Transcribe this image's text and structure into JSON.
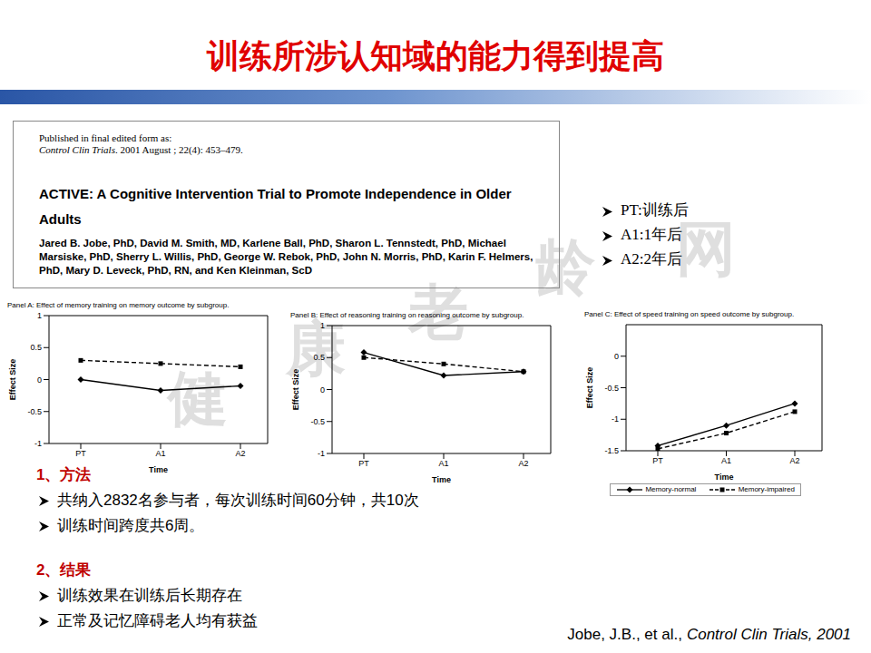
{
  "title": "训练所涉认知域的能力得到提高",
  "paper": {
    "published": "Published in final edited form as:",
    "journal": "Control Clin Trials",
    "issue": ". 2001 August ; 22(4): 453–479.",
    "title": "ACTIVE: A Cognitive Intervention Trial to Promote Independence in Older Adults",
    "authors": "Jared B. Jobe, PhD, David M. Smith, MD, Karlene Ball, PhD, Sharon L. Tennstedt, PhD, Michael Marsiske, PhD, Sherry L. Willis, PhD, George W. Rebok, PhD, John N. Morris, PhD, Karin F. Helmers, PhD, Mary D. Leveck, PhD, RN, and Ken Kleinman, ScD"
  },
  "time_points": [
    "PT:训练后",
    "A1:1年后",
    "A2:2年后"
  ],
  "chart_data": [
    {
      "type": "line",
      "title": "Panel A: Effect of memory training on memory outcome by subgroup.",
      "xlabel": "Time",
      "ylabel": "Effect Size",
      "categories": [
        "PT",
        "A1",
        "A2"
      ],
      "ylim": [
        -1,
        1
      ],
      "yticks": [
        -1,
        -0.5,
        0,
        0.5,
        1
      ],
      "series": [
        {
          "values": [
            0.3,
            0.25,
            0.2
          ],
          "color": "#000000",
          "line_style": "dashed",
          "marker": "square"
        },
        {
          "values": [
            0,
            -0.17,
            -0.1
          ],
          "color": "#000000",
          "line_style": "solid",
          "marker": "diamond"
        }
      ]
    },
    {
      "type": "line",
      "title": "Panel B: Effect of reasoning training on reasoning outcome by subgroup.",
      "xlabel": "Time",
      "ylabel": "Effect Size",
      "categories": [
        "PT",
        "A1",
        "A2"
      ],
      "ylim": [
        -1,
        1
      ],
      "yticks": [
        -1,
        -0.5,
        0,
        0.5,
        1
      ],
      "series": [
        {
          "values": [
            0.5,
            0.4,
            0.28
          ],
          "color": "#000000",
          "line_style": "dashed",
          "marker": "square"
        },
        {
          "values": [
            0.58,
            0.22,
            0.28
          ],
          "color": "#000000",
          "line_style": "solid",
          "marker": "diamond"
        }
      ]
    },
    {
      "type": "line",
      "title": "Panel C: Effect of speed training on speed outcome by subgroup.",
      "xlabel": "Time",
      "ylabel": "Effect Size",
      "categories": [
        "PT",
        "A1",
        "A2"
      ],
      "ylim": [
        -1.5,
        0.5
      ],
      "yticks": [
        -1.5,
        -1,
        -0.5,
        0
      ],
      "legend": "bottom",
      "series": [
        {
          "name": "Memory-normal",
          "values": [
            -1.42,
            -1.1,
            -0.75
          ],
          "color": "#000000",
          "line_style": "solid",
          "marker": "diamond"
        },
        {
          "name": "Memory-impaired",
          "values": [
            -1.47,
            -1.22,
            -0.88
          ],
          "color": "#000000",
          "line_style": "dashed",
          "marker": "square"
        }
      ]
    }
  ],
  "sections": [
    {
      "heading": "1、方法",
      "bullets": [
        "共纳入2832名参与者，每次训练时间60分钟，共10次",
        "训练时间跨度共6周。"
      ]
    },
    {
      "heading": "2、结果",
      "bullets": [
        "训练效果在训练后长期存在",
        "正常及记忆障碍老人均有获益"
      ]
    }
  ],
  "citation": {
    "authors": "Jobe, J.B., et al.,",
    "journal": "Control Clin Trials, 2001"
  },
  "watermark": "健康老龄网"
}
